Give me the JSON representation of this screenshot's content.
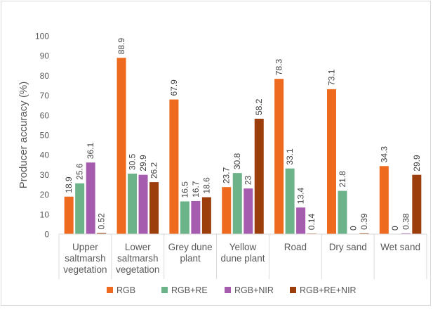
{
  "chart_data": {
    "type": "bar",
    "title": "",
    "xlabel": "",
    "ylabel": "Producer accuracy (%)",
    "ylim": [
      0,
      100
    ],
    "yticks": [
      0,
      10,
      20,
      30,
      40,
      50,
      60,
      70,
      80,
      90,
      100
    ],
    "grid": false,
    "legend_position": "bottom",
    "categories": [
      [
        "Upper",
        "saltmarsh",
        "vegetation"
      ],
      [
        "Lower",
        "saltmarsh",
        "vegetation"
      ],
      [
        "Grey dune",
        "plant"
      ],
      [
        "Yellow",
        "dune plant"
      ],
      [
        "Road"
      ],
      [
        "Dry sand"
      ],
      [
        "Wet sand"
      ]
    ],
    "series": [
      {
        "name": "RGB",
        "color": "#ED6A1E",
        "values": [
          18.9,
          88.9,
          67.9,
          23.7,
          78.3,
          73.1,
          34.3
        ],
        "labels": [
          "18.9",
          "88.9",
          "67.9",
          "23.7",
          "78.3",
          "73.1",
          "34.3"
        ]
      },
      {
        "name": "RGB+RE",
        "color": "#6DB389",
        "values": [
          25.6,
          30.5,
          16.5,
          30.8,
          33.1,
          21.8,
          0
        ],
        "labels": [
          "25.6",
          "30.5",
          "16.5",
          "30.8",
          "33.1",
          "21.8",
          "0"
        ]
      },
      {
        "name": "RGB+NIR",
        "color": "#A55BAE",
        "values": [
          36.1,
          29.9,
          16.7,
          23,
          13.4,
          0,
          0.38
        ],
        "labels": [
          "36.1",
          "29.9",
          "16.7",
          "23",
          "13.4",
          "0",
          "0.38"
        ]
      },
      {
        "name": "RGB+RE+NIR",
        "color": "#9C3E0C",
        "values": [
          0.52,
          26.2,
          18.6,
          58.2,
          0.14,
          0.39,
          29.9
        ],
        "labels": [
          "0.52",
          "26.2",
          "18.6",
          "58.2",
          "0.14",
          "0.39",
          "29.9"
        ]
      }
    ]
  }
}
